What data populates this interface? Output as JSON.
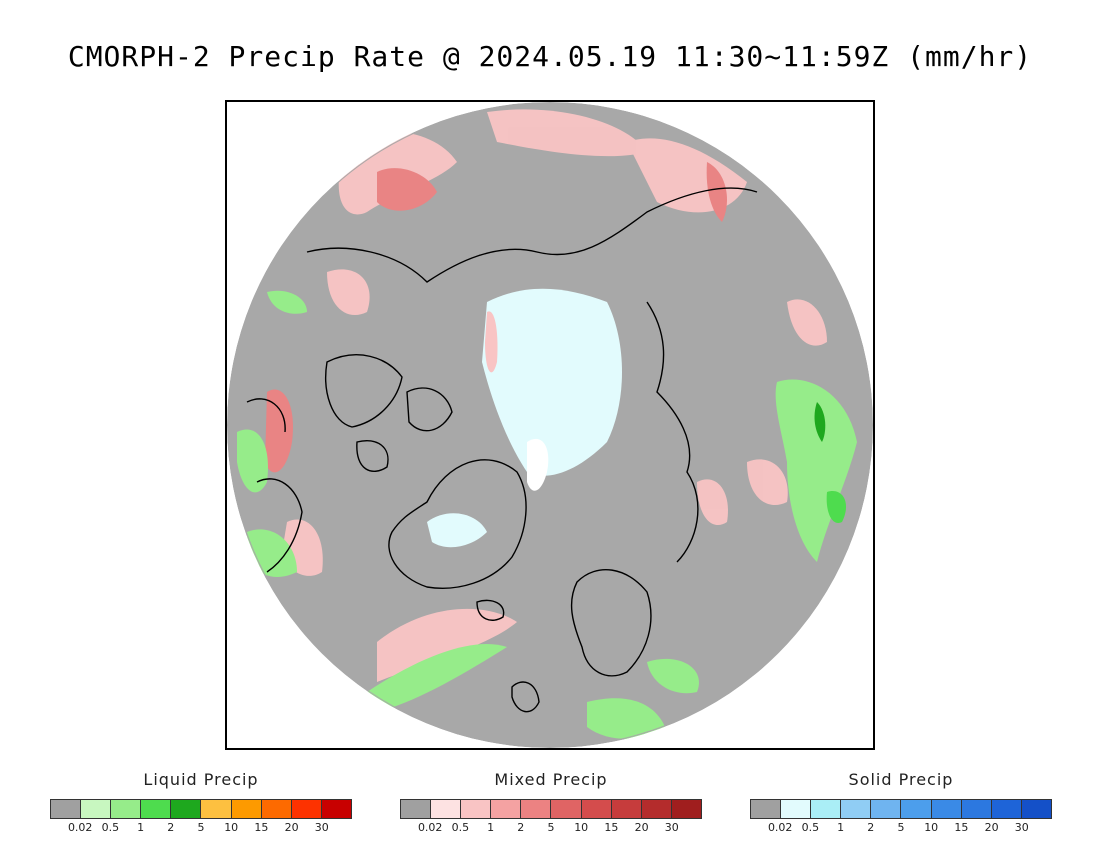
{
  "title": "CMORPH-2 Precip Rate @ 2024.05.19 11:30~11:59Z (mm/hr)",
  "map": {
    "projection": "north polar stereographic",
    "background_color": "#a8a8a8",
    "coastline_color": "#000000"
  },
  "legends": [
    {
      "id": "liquid",
      "title": "Liquid Precip",
      "colors": [
        "#a0a0a0",
        "#c8f7c0",
        "#96ec8a",
        "#4edc4e",
        "#1ea81e",
        "#fdc040",
        "#fd9a00",
        "#fd6a00",
        "#fd3200",
        "#c80000"
      ],
      "ticks": [
        "0.02",
        "0.5",
        "1",
        "2",
        "5",
        "10",
        "15",
        "20",
        "30"
      ]
    },
    {
      "id": "mixed",
      "title": "Mixed Precip",
      "colors": [
        "#a0a0a0",
        "#fde2e2",
        "#f9c4c4",
        "#f4a2a2",
        "#ec8282",
        "#e06464",
        "#d44c4c",
        "#c63c3c",
        "#b42c2c",
        "#a01e1e"
      ],
      "ticks": [
        "0.02",
        "0.5",
        "1",
        "2",
        "5",
        "10",
        "15",
        "20",
        "30"
      ]
    },
    {
      "id": "solid",
      "title": "Solid Precip",
      "colors": [
        "#a0a0a0",
        "#e2fbfd",
        "#aaeef6",
        "#90cdf4",
        "#6fb4f0",
        "#4c9eec",
        "#3a8ae6",
        "#2c78e0",
        "#1e64d8",
        "#1450c8"
      ],
      "ticks": [
        "0.02",
        "0.5",
        "1",
        "2",
        "5",
        "10",
        "15",
        "20",
        "30"
      ]
    }
  ]
}
